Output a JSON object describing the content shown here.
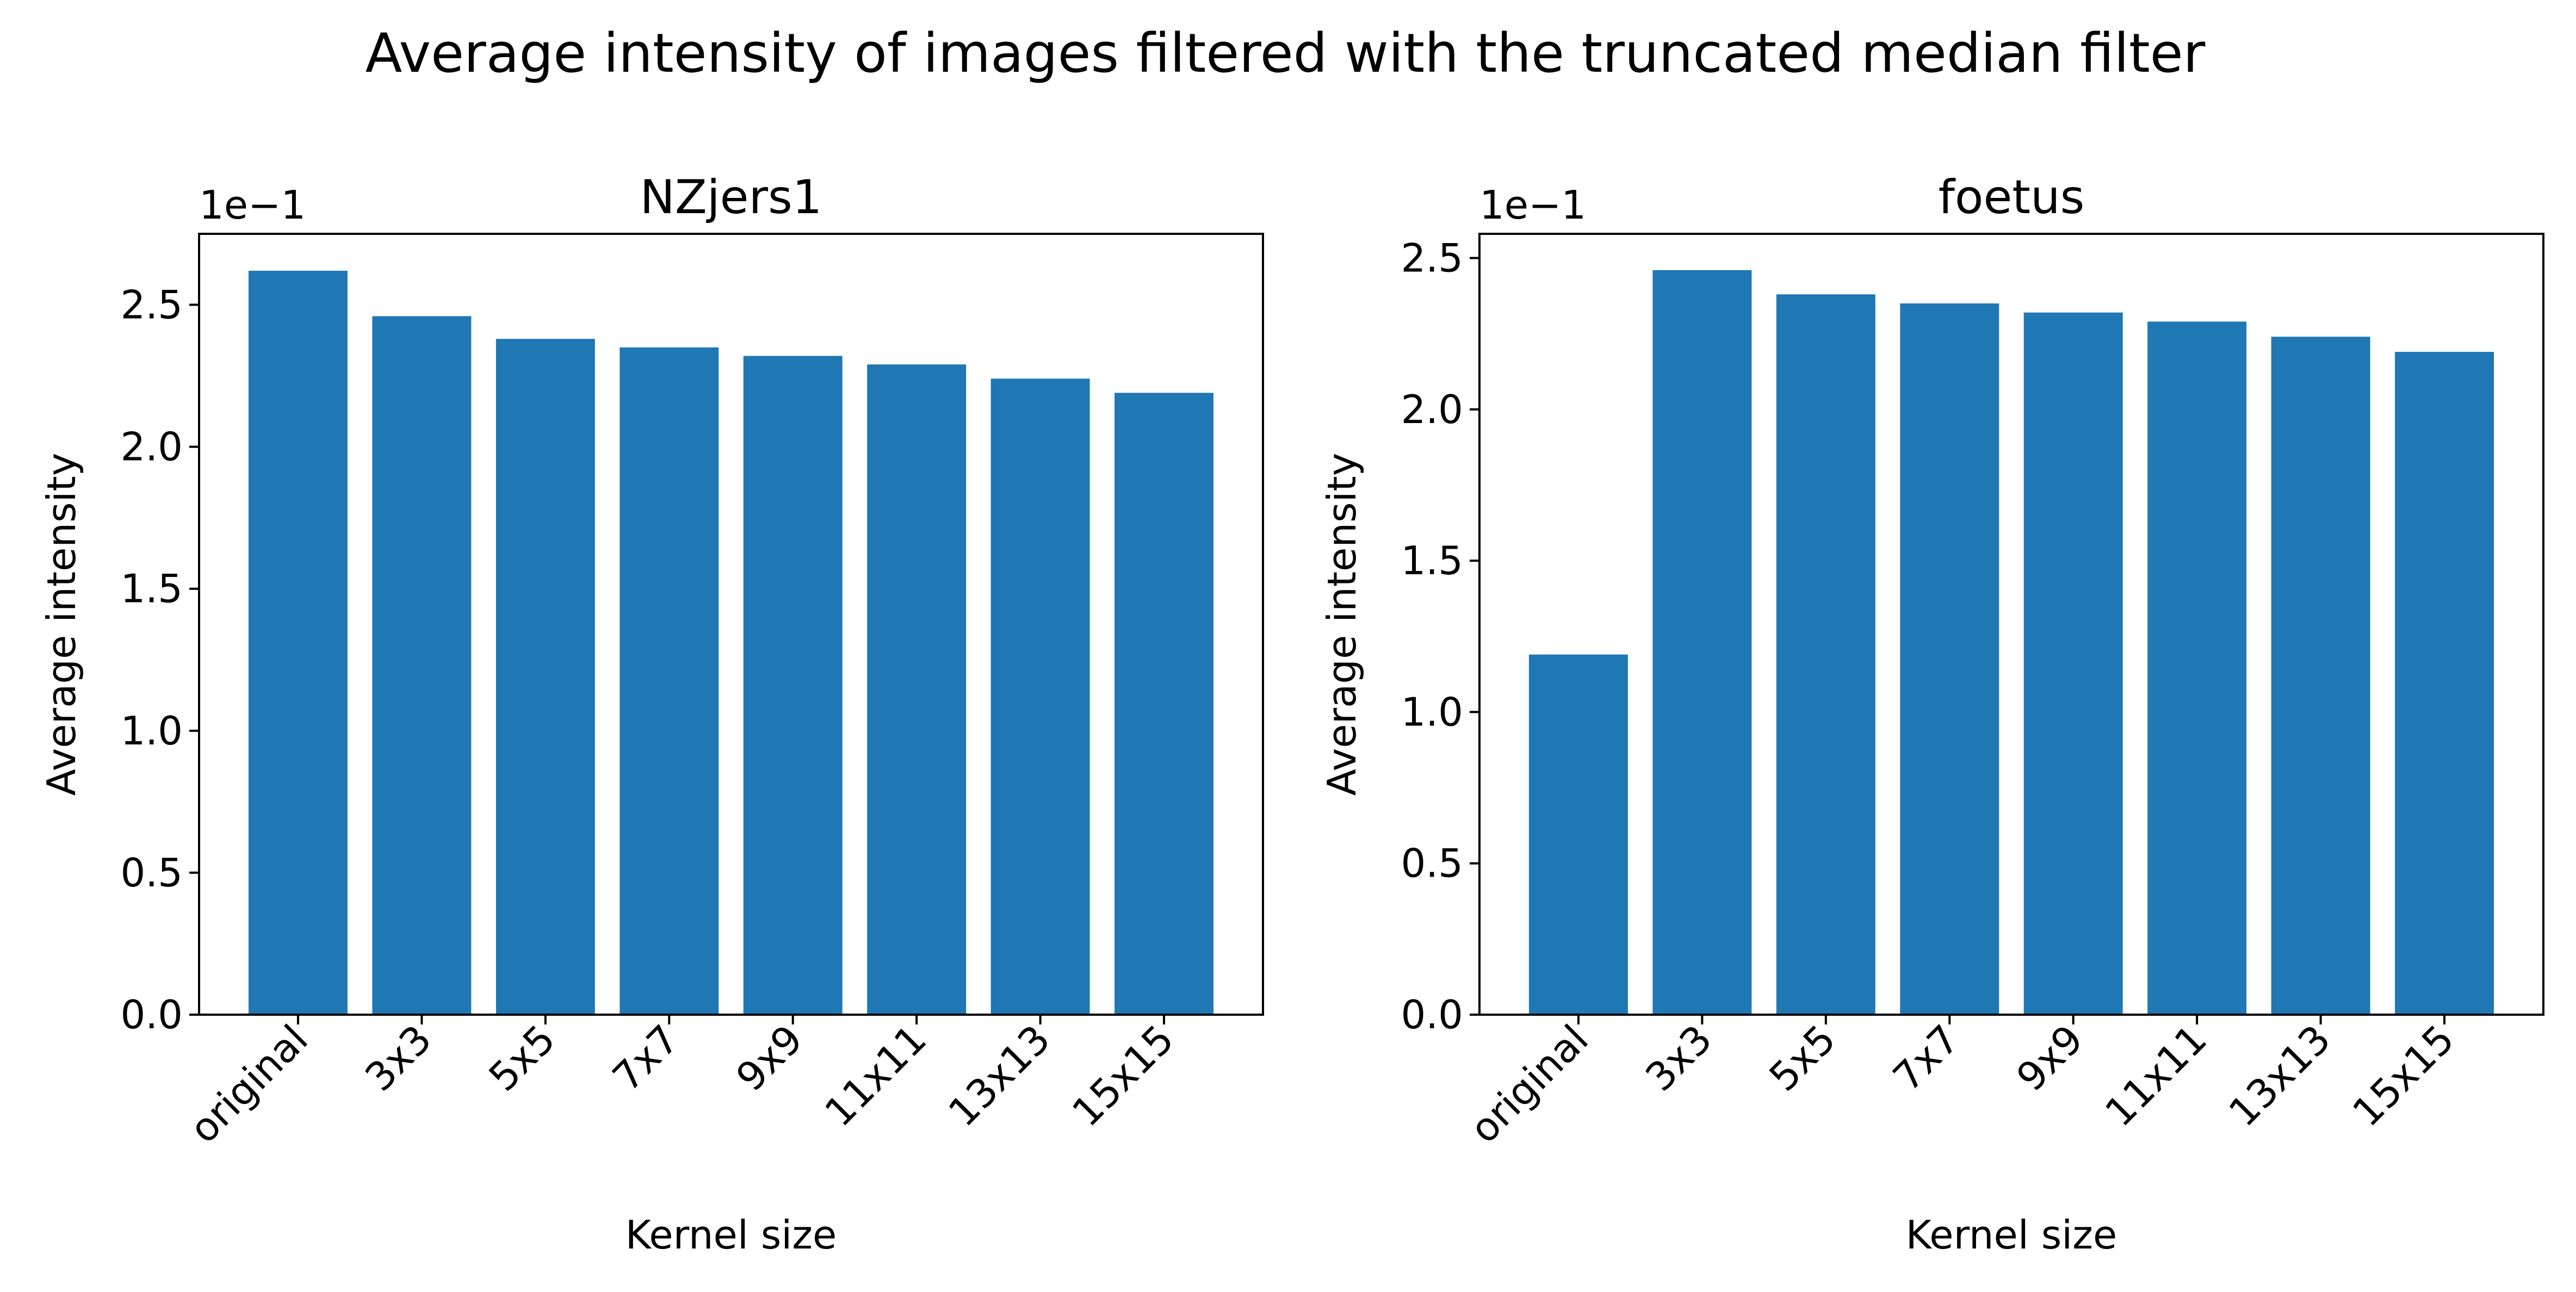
{
  "figure": {
    "suptitle": "Average intensity of images filtered with the truncated median filter"
  },
  "colors": {
    "bar": "#1f77b4",
    "axes": "#000000",
    "background": "#ffffff"
  },
  "chart_data": [
    {
      "type": "bar",
      "title": "NZjers1",
      "xlabel": "Kernel size",
      "ylabel": "Average intensity",
      "offset_text": "1e−1",
      "categories": [
        "original",
        "3x3",
        "5x5",
        "7x7",
        "9x9",
        "11x11",
        "13x13",
        "15x15"
      ],
      "values": [
        0.262,
        0.246,
        0.238,
        0.235,
        0.232,
        0.229,
        0.224,
        0.219
      ],
      "ylim": [
        0,
        0.275
      ],
      "yticks": [
        0,
        0.05,
        0.1,
        0.15,
        0.2,
        0.25
      ],
      "ytick_labels": [
        "0.0",
        "0.5",
        "1.0",
        "1.5",
        "2.0",
        "2.5"
      ],
      "grid": false,
      "xtick_rotation": 45
    },
    {
      "type": "bar",
      "title": "foetus",
      "xlabel": "Kernel size",
      "ylabel": "Average intensity",
      "offset_text": "1e−1",
      "categories": [
        "original",
        "3x3",
        "5x5",
        "7x7",
        "9x9",
        "11x11",
        "13x13",
        "15x15"
      ],
      "values": [
        0.119,
        0.246,
        0.238,
        0.235,
        0.232,
        0.229,
        0.224,
        0.219
      ],
      "ylim": [
        0,
        0.258
      ],
      "yticks": [
        0,
        0.05,
        0.1,
        0.15,
        0.2,
        0.25
      ],
      "ytick_labels": [
        "0.0",
        "0.5",
        "1.0",
        "1.5",
        "2.0",
        "2.5"
      ],
      "grid": false,
      "xtick_rotation": 45
    }
  ]
}
